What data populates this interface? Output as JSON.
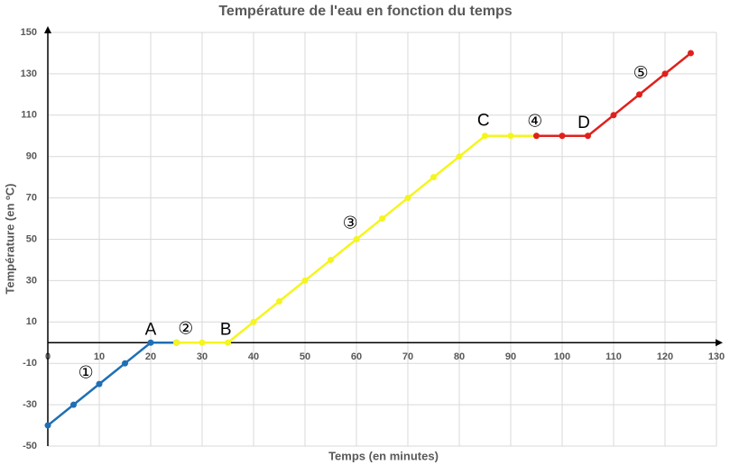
{
  "chart_data": {
    "type": "line",
    "title": "Température de l'eau en fonction du temps",
    "x_label": "Temps (en minutes)",
    "y_label": "Température (en ºC)",
    "x": [
      0,
      5,
      10,
      15,
      20,
      25,
      30,
      35,
      40,
      45,
      50,
      55,
      60,
      65,
      70,
      75,
      80,
      85,
      90,
      95,
      100,
      105,
      110,
      115,
      120,
      125
    ],
    "series": [
      {
        "color": "#1f6fb5",
        "values": [
          -40,
          -30,
          -20,
          -10,
          0,
          0,
          null,
          null,
          null,
          null,
          null,
          null,
          null,
          null,
          null,
          null,
          null,
          null,
          null,
          null,
          null,
          null,
          null,
          null,
          null,
          null
        ]
      },
      {
        "color": "#f5f51f",
        "values": [
          null,
          null,
          null,
          null,
          null,
          0,
          0,
          0,
          10,
          20,
          30,
          40,
          50,
          60,
          70,
          80,
          90,
          100,
          100,
          100,
          null,
          null,
          null,
          null,
          null,
          null
        ]
      },
      {
        "color": "#e0201c",
        "values": [
          null,
          null,
          null,
          null,
          null,
          null,
          null,
          null,
          null,
          null,
          null,
          null,
          null,
          null,
          null,
          null,
          null,
          null,
          null,
          100,
          100,
          100,
          110,
          120,
          130,
          140
        ]
      }
    ],
    "xlim": [
      0,
      130
    ],
    "xticks": [
      0,
      10,
      20,
      30,
      40,
      50,
      60,
      70,
      80,
      90,
      100,
      110,
      120,
      130
    ],
    "ylim": [
      -50,
      150
    ],
    "yticks": [
      -50,
      -30,
      -10,
      10,
      30,
      50,
      70,
      90,
      110,
      130,
      150
    ],
    "grid": true,
    "annotations": [
      {
        "text": "A",
        "x": 20,
        "y": 6
      },
      {
        "text": "B",
        "x": 34.6,
        "y": 6
      },
      {
        "text": "C",
        "x": 84.7,
        "y": 107
      },
      {
        "text": "D",
        "x": 104.2,
        "y": 106
      },
      {
        "text": "①",
        "x": 7.4,
        "y": -15
      },
      {
        "text": "②",
        "x": 26.8,
        "y": 6.5
      },
      {
        "text": "③",
        "x": 58.8,
        "y": 57.5
      },
      {
        "text": "④",
        "x": 94.7,
        "y": 106.7
      },
      {
        "text": "⑤",
        "x": 115.3,
        "y": 130
      }
    ]
  }
}
